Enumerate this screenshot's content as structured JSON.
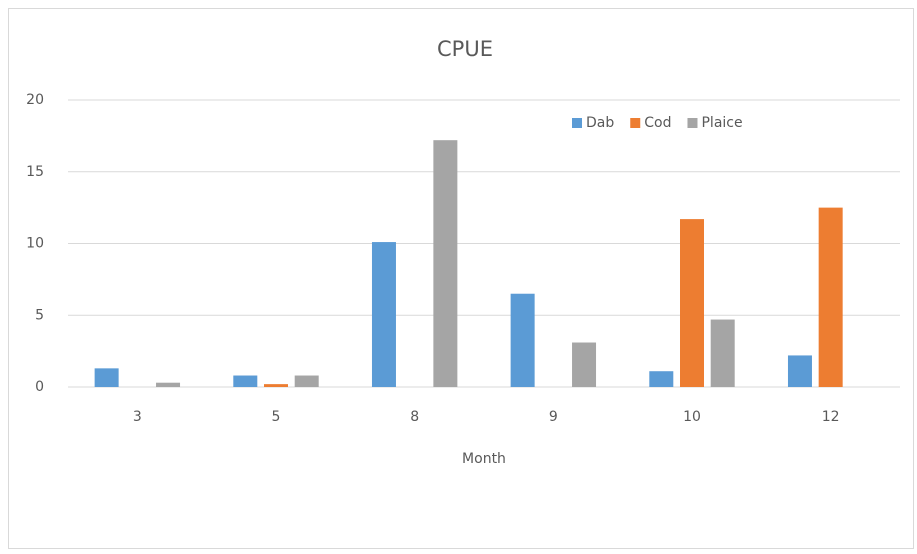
{
  "chart_data": {
    "type": "bar",
    "title": "CPUE",
    "x_label": "Month",
    "categories": [
      "3",
      "5",
      "8",
      "9",
      "10",
      "12"
    ],
    "series": [
      {
        "name": "Dab",
        "color": "#5b9bd5",
        "values": [
          1.3,
          0.8,
          10.1,
          6.5,
          1.1,
          2.2
        ]
      },
      {
        "name": "Cod",
        "color": "#ed7d31",
        "values": [
          0,
          0.2,
          0,
          0,
          11.7,
          12.5
        ]
      },
      {
        "name": "Plaice",
        "color": "#a5a5a5",
        "values": [
          0.3,
          0.8,
          17.2,
          3.1,
          4.7,
          0
        ]
      }
    ],
    "ylim": [
      0,
      20
    ],
    "yticks": [
      0,
      5,
      10,
      15,
      20
    ],
    "grid": true,
    "legend": "top-right"
  }
}
